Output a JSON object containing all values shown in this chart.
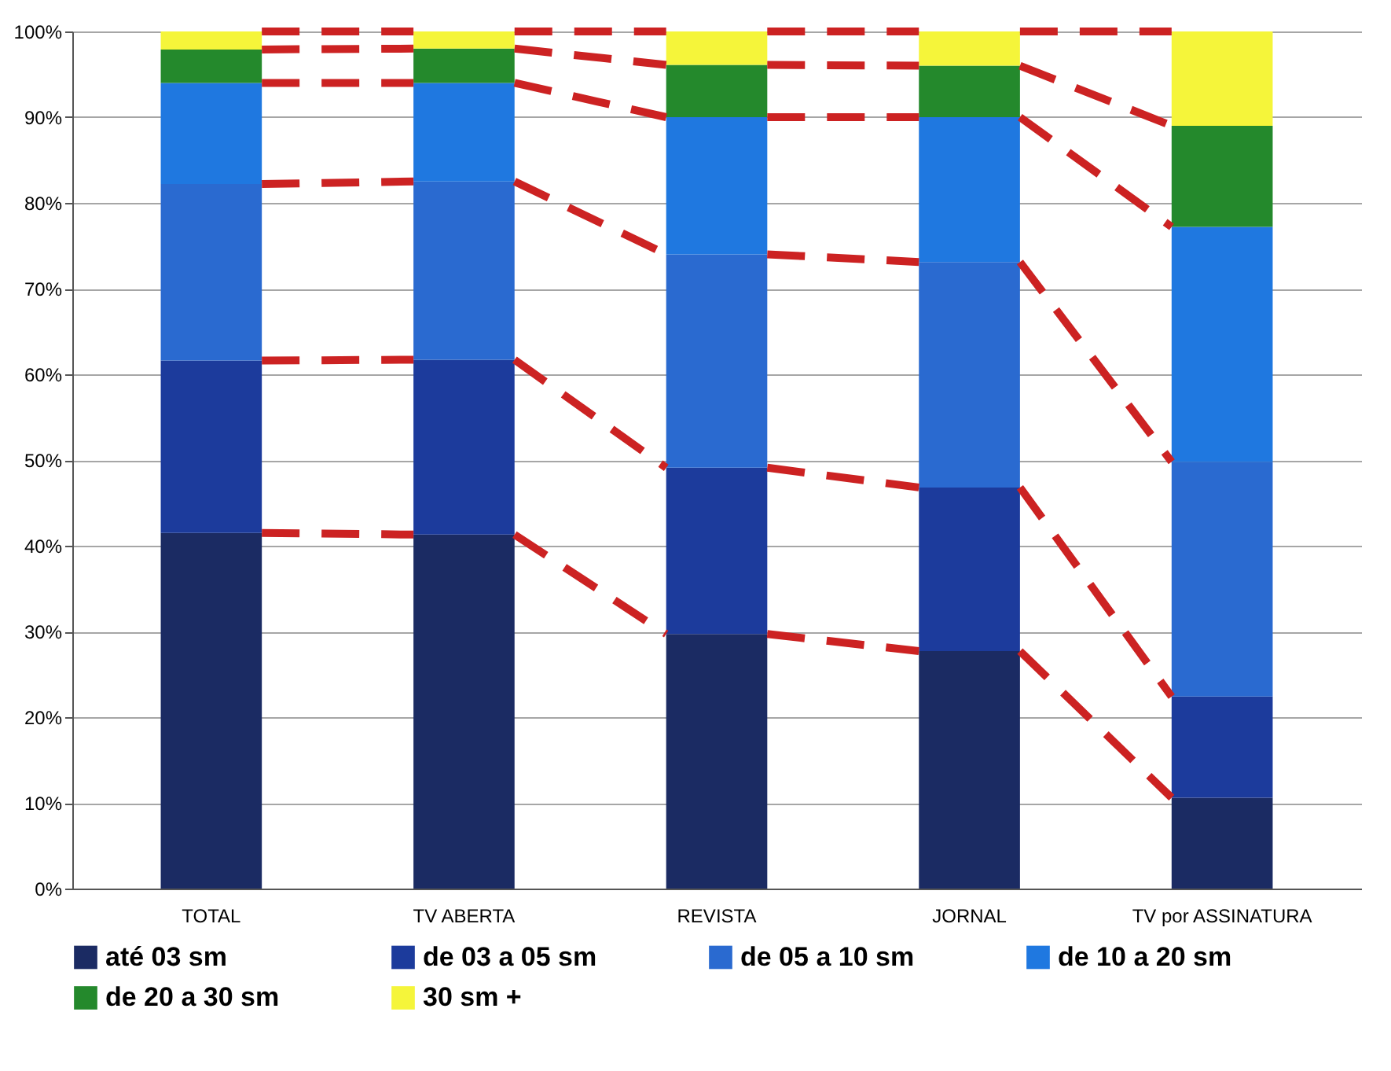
{
  "chart_data": {
    "type": "bar",
    "stacked": true,
    "categories": [
      "TOTAL",
      "TV ABERTA",
      "REVISTA",
      "JORNAL",
      "TV por ASSINATURA"
    ],
    "series": [
      {
        "name": "até 03 sm",
        "color": "#1b2b63",
        "values": [
          41.5,
          41.3,
          29.7,
          27.7,
          10.6
        ]
      },
      {
        "name": "de 03 a 05 sm",
        "color": "#1c3b9c",
        "values": [
          20.1,
          20.4,
          19.4,
          19.1,
          11.8
        ]
      },
      {
        "name": "de 05 a 10 sm",
        "color": "#2a6ad0",
        "values": [
          20.6,
          20.8,
          24.9,
          26.3,
          27.4
        ]
      },
      {
        "name": "de 10 a 20 sm",
        "color": "#1f78e0",
        "values": [
          11.8,
          11.5,
          16.0,
          16.9,
          27.4
        ]
      },
      {
        "name": "de 20 a 30 sm",
        "color": "#24892c",
        "values": [
          3.9,
          4.0,
          6.1,
          6.0,
          11.8
        ]
      },
      {
        "name": "30 sm +",
        "color": "#f5f53a",
        "values": [
          2.1,
          2.0,
          3.9,
          4.0,
          11.0
        ]
      }
    ],
    "ylim": [
      0,
      100
    ],
    "yticks": [
      {
        "value": 0,
        "label": "0%"
      },
      {
        "value": 10,
        "label": "10%"
      },
      {
        "value": 20,
        "label": "20%"
      },
      {
        "value": 30,
        "label": "30%"
      },
      {
        "value": 40,
        "label": "40%"
      },
      {
        "value": 50,
        "label": "50%"
      },
      {
        "value": 60,
        "label": "60%"
      },
      {
        "value": 70,
        "label": "70%"
      },
      {
        "value": 80,
        "label": "80%"
      },
      {
        "value": 90,
        "label": "90%"
      },
      {
        "value": 100,
        "label": "100%"
      }
    ],
    "grid": "y",
    "legend": "bottom"
  }
}
